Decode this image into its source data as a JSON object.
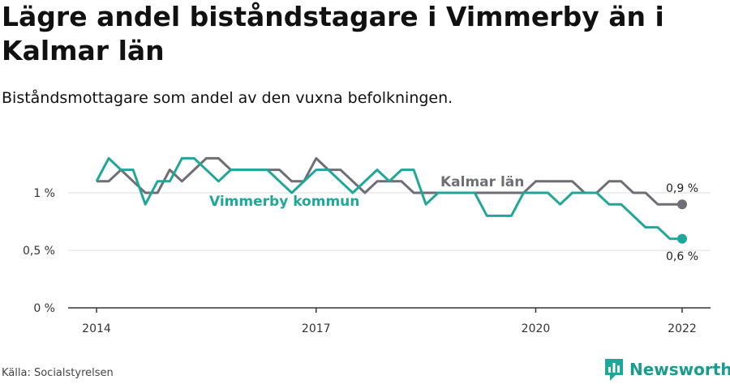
{
  "header": {
    "title": "Lägre andel biståndstagare i Vimmerby än i Kalmar län",
    "subtitle": "Biståndsmottagare som andel av den vuxna befolkningen."
  },
  "footer": {
    "source": "Källa: Socialstyrelsen",
    "brand": "Newsworthy",
    "brand_icon": "newsworthy-logo-icon"
  },
  "colors": {
    "vimmerby": "#1fa899",
    "kalmar": "#6e6e74",
    "grid": "#dddddd",
    "axis": "#333333"
  },
  "chart_data": {
    "type": "line",
    "x_ticks": [
      "2014",
      "2017",
      "2020",
      "2022"
    ],
    "y_ticks": [
      "0 %",
      "0,5 %",
      "1 %"
    ],
    "ylim": [
      0,
      1.45
    ],
    "grid": true,
    "series": [
      {
        "name": "Kalmar län",
        "color": "#6e6e74",
        "end_label": "0,9 %",
        "points": [
          [
            "2014-01",
            1.1
          ],
          [
            "2014-03",
            1.1
          ],
          [
            "2014-05",
            1.2
          ],
          [
            "2014-07",
            1.1
          ],
          [
            "2014-09",
            1.0
          ],
          [
            "2014-11",
            1.0
          ],
          [
            "2015-01",
            1.2
          ],
          [
            "2015-03",
            1.1
          ],
          [
            "2015-05",
            1.2
          ],
          [
            "2015-07",
            1.3
          ],
          [
            "2015-09",
            1.3
          ],
          [
            "2015-11",
            1.2
          ],
          [
            "2016-01",
            1.2
          ],
          [
            "2016-03",
            1.2
          ],
          [
            "2016-05",
            1.2
          ],
          [
            "2016-07",
            1.2
          ],
          [
            "2016-09",
            1.1
          ],
          [
            "2016-11",
            1.1
          ],
          [
            "2017-01",
            1.3
          ],
          [
            "2017-03",
            1.2
          ],
          [
            "2017-05",
            1.2
          ],
          [
            "2017-07",
            1.1
          ],
          [
            "2017-09",
            1.0
          ],
          [
            "2017-11",
            1.1
          ],
          [
            "2018-01",
            1.1
          ],
          [
            "2018-03",
            1.1
          ],
          [
            "2018-05",
            1.0
          ],
          [
            "2018-07",
            1.0
          ],
          [
            "2018-09",
            1.0
          ],
          [
            "2018-11",
            1.0
          ],
          [
            "2019-01",
            1.0
          ],
          [
            "2019-03",
            1.0
          ],
          [
            "2019-05",
            1.0
          ],
          [
            "2019-07",
            1.0
          ],
          [
            "2019-09",
            1.0
          ],
          [
            "2019-11",
            1.0
          ],
          [
            "2020-01",
            1.1
          ],
          [
            "2020-03",
            1.1
          ],
          [
            "2020-05",
            1.1
          ],
          [
            "2020-07",
            1.1
          ],
          [
            "2020-09",
            1.0
          ],
          [
            "2020-11",
            1.0
          ],
          [
            "2021-01",
            1.1
          ],
          [
            "2021-03",
            1.1
          ],
          [
            "2021-05",
            1.0
          ],
          [
            "2021-07",
            1.0
          ],
          [
            "2021-09",
            0.9
          ],
          [
            "2021-11",
            0.9
          ],
          [
            "2022-01",
            0.9
          ]
        ]
      },
      {
        "name": "Vimmerby kommun",
        "color": "#1fa899",
        "end_label": "0,6 %",
        "points": [
          [
            "2014-01",
            1.1
          ],
          [
            "2014-03",
            1.3
          ],
          [
            "2014-05",
            1.2
          ],
          [
            "2014-07",
            1.2
          ],
          [
            "2014-09",
            0.9
          ],
          [
            "2014-11",
            1.1
          ],
          [
            "2015-01",
            1.1
          ],
          [
            "2015-03",
            1.3
          ],
          [
            "2015-05",
            1.3
          ],
          [
            "2015-07",
            1.2
          ],
          [
            "2015-09",
            1.1
          ],
          [
            "2015-11",
            1.2
          ],
          [
            "2016-01",
            1.2
          ],
          [
            "2016-03",
            1.2
          ],
          [
            "2016-05",
            1.2
          ],
          [
            "2016-07",
            1.1
          ],
          [
            "2016-09",
            1.0
          ],
          [
            "2016-11",
            1.1
          ],
          [
            "2017-01",
            1.2
          ],
          [
            "2017-03",
            1.2
          ],
          [
            "2017-05",
            1.1
          ],
          [
            "2017-07",
            1.0
          ],
          [
            "2017-09",
            1.1
          ],
          [
            "2017-11",
            1.2
          ],
          [
            "2018-01",
            1.1
          ],
          [
            "2018-03",
            1.2
          ],
          [
            "2018-05",
            1.2
          ],
          [
            "2018-07",
            0.9
          ],
          [
            "2018-09",
            1.0
          ],
          [
            "2018-11",
            1.0
          ],
          [
            "2019-01",
            1.0
          ],
          [
            "2019-03",
            1.0
          ],
          [
            "2019-05",
            0.8
          ],
          [
            "2019-07",
            0.8
          ],
          [
            "2019-09",
            0.8
          ],
          [
            "2019-11",
            1.0
          ],
          [
            "2020-01",
            1.0
          ],
          [
            "2020-03",
            1.0
          ],
          [
            "2020-05",
            0.9
          ],
          [
            "2020-07",
            1.0
          ],
          [
            "2020-09",
            1.0
          ],
          [
            "2020-11",
            1.0
          ],
          [
            "2021-01",
            0.9
          ],
          [
            "2021-03",
            0.9
          ],
          [
            "2021-05",
            0.8
          ],
          [
            "2021-07",
            0.7
          ],
          [
            "2021-09",
            0.7
          ],
          [
            "2021-11",
            0.6
          ],
          [
            "2022-01",
            0.6
          ]
        ]
      }
    ]
  }
}
